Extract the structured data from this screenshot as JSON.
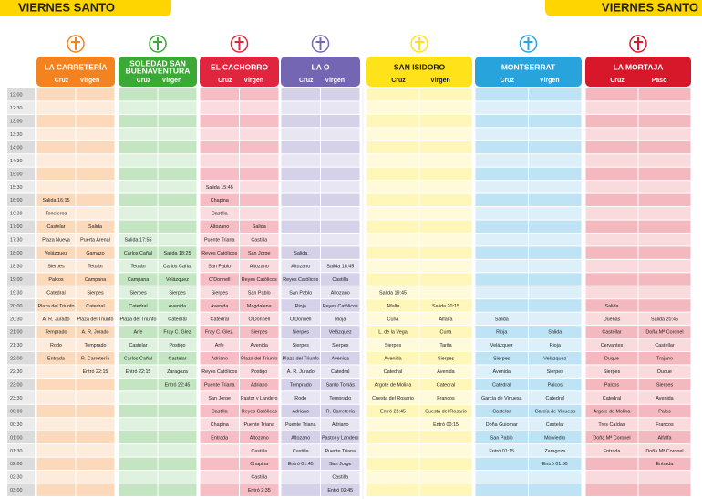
{
  "left_title": "VIERNES SANTO",
  "right_title": "VIERNES SANTO",
  "times": [
    "12:00",
    "12:30",
    "13:00",
    "13:30",
    "14:00",
    "14:30",
    "15:00",
    "15:30",
    "16:00",
    "16:30",
    "17:00",
    "17:30",
    "18:00",
    "18:30",
    "19:00",
    "19:30",
    "20:00",
    "20:30",
    "21:00",
    "21:30",
    "22:00",
    "22:30",
    "23:00",
    "23:30",
    "00:00",
    "00:30",
    "01:00",
    "01:30",
    "02:00",
    "02:30",
    "03:00"
  ],
  "hermandades": [
    {
      "name": [
        "LA CARRETERÍA"
      ],
      "color": "#f4821f",
      "text_color": "#ffffff",
      "columns": [
        {
          "label": "Cruz",
          "stops": [
            null,
            null,
            null,
            null,
            null,
            null,
            null,
            null,
            "Salida 16:15",
            "Toneleros",
            "Castelar",
            "Plaza Nueva",
            "Velázquez",
            "Sierpes",
            "Palcos",
            "Catedral",
            "Plaza del Triunfo",
            "A. R. Jurado",
            "Temprado",
            "Rodo",
            "Entrada",
            null,
            null,
            null,
            null,
            null,
            null,
            null,
            null,
            null,
            null
          ]
        },
        {
          "label": "Virgen",
          "stops": [
            null,
            null,
            null,
            null,
            null,
            null,
            null,
            null,
            null,
            null,
            "Salida",
            "Puerta Arenal",
            "Gamazo",
            "Tetuán",
            "Campana",
            "Sierpes",
            "Catedral",
            "Plaza del Triunfo",
            "A. R. Jurado",
            "Temprado",
            "R. Carretería",
            "Entró 22:15",
            null,
            null,
            null,
            null,
            null,
            null,
            null,
            null,
            null
          ]
        }
      ]
    },
    {
      "name": [
        "SOLEDAD SAN",
        "BUENAVENTURA"
      ],
      "color": "#3aa935",
      "text_color": "#ffffff",
      "columns": [
        {
          "label": "Cruz",
          "stops": [
            null,
            null,
            null,
            null,
            null,
            null,
            null,
            null,
            null,
            null,
            null,
            "Salida 17:55",
            "Carlos Cañal",
            "Tetuán",
            "Campana",
            "Sierpes",
            "Catedral",
            "Plaza del Triunfo",
            "Arfe",
            "Castelar",
            "Carlos Cañal",
            "Entró 22:15",
            null,
            null,
            null,
            null,
            null,
            null,
            null,
            null,
            null
          ]
        },
        {
          "label": "Virgen",
          "stops": [
            null,
            null,
            null,
            null,
            null,
            null,
            null,
            null,
            null,
            null,
            null,
            null,
            "Salida 18:25",
            "Carlos Cañal",
            "Velázquez",
            "Sierpes",
            "Avenida",
            "Catedral",
            "Fray C. Glez",
            "Postigo",
            "Castelar",
            "Zaragoza",
            "Entró 22:45",
            null,
            null,
            null,
            null,
            null,
            null,
            null,
            null
          ]
        }
      ]
    },
    {
      "name": [
        "EL CACHORRO"
      ],
      "color": "#e0263e",
      "text_color": "#ffffff",
      "columns": [
        {
          "label": "Cruz",
          "stops": [
            null,
            null,
            null,
            null,
            null,
            null,
            null,
            "Salida 15:45",
            "Chapina",
            "Castilla",
            "Altozano",
            "Puente Triana",
            "Reyes Católicos",
            "San Pablo",
            "O'Donnell",
            "Sierpes",
            "Avenida",
            "Catedral",
            "Fray C. Glez.",
            "Arfe",
            "Adriano",
            "Reyes Católicos",
            "Puente Triana",
            "San Jorge",
            "Castilla",
            "Chapina",
            "Entrada",
            null,
            null,
            null,
            null
          ]
        },
        {
          "label": "Virgen",
          "stops": [
            null,
            null,
            null,
            null,
            null,
            null,
            null,
            null,
            null,
            null,
            "Salida",
            "Castilla",
            "San Jorge",
            "Altozano",
            "Reyes Católicos",
            "San Pablo",
            "Magdalena",
            "O'Donnell",
            "Sierpes",
            "Avenida",
            "Plaza del Triunfo",
            "Postigo",
            "Adriano",
            "Pastor y Landero",
            "Reyes Católicos",
            "Puente Triana",
            "Altozano",
            "Castilla",
            "Chapina",
            "Castilla",
            "Entró 2:35"
          ]
        }
      ]
    },
    {
      "name": [
        "LA O"
      ],
      "color": "#7566b3",
      "text_color": "#ffffff",
      "columns": [
        {
          "label": "Cruz",
          "stops": [
            null,
            null,
            null,
            null,
            null,
            null,
            null,
            null,
            null,
            null,
            null,
            null,
            "Salida",
            "Altozano",
            "Reyes Católicos",
            "San Pablo",
            "Rioja",
            "O'Donnell",
            "Sierpes",
            "Sierpes",
            "Plaza del Triunfo",
            "A. R. Jurado",
            "Temprado",
            "Rodo",
            "Adriano",
            "Puente Triana",
            "Altozano",
            "Castilla",
            "Entró 01:45",
            null,
            null
          ]
        },
        {
          "label": "Virgen",
          "stops": [
            null,
            null,
            null,
            null,
            null,
            null,
            null,
            null,
            null,
            null,
            null,
            null,
            null,
            "Salida 18:45",
            "Castilla",
            "Altozano",
            "Reyes Católicos",
            "Rioja",
            "Velázquez",
            "Sierpes",
            "Avenida",
            "Catedral",
            "Santo Tomás",
            "Temprado",
            "R. Carretería",
            "Adriano",
            "Pastor y Landero",
            "Puente Triana",
            "San Jorge",
            "Castilla",
            "Entró 02:45"
          ]
        }
      ]
    },
    {
      "name": [
        "SAN ISIDORO"
      ],
      "color": "#ffe21a",
      "text_color": "#1a1a1a",
      "columns": [
        {
          "label": "Cruz",
          "stops": [
            null,
            null,
            null,
            null,
            null,
            null,
            null,
            null,
            null,
            null,
            null,
            null,
            null,
            null,
            null,
            "Salida 19:45",
            "Alfalfa",
            "Cuna",
            "L. de la Vega",
            "Sierpes",
            "Avenida",
            "Catedral",
            "Argote de Molina",
            "Cuesta del Rosario",
            "Entró 23:45",
            null,
            null,
            null,
            null,
            null,
            null
          ]
        },
        {
          "label": "Virgen",
          "stops": [
            null,
            null,
            null,
            null,
            null,
            null,
            null,
            null,
            null,
            null,
            null,
            null,
            null,
            null,
            null,
            null,
            "Salida 20:15",
            "Alfalfa",
            "Cuna",
            "Tarifa",
            "Sierpes",
            "Avenida",
            "Catedral",
            "Francos",
            "Cuesta del Rosario",
            "Entró 00:15",
            null,
            null,
            null,
            null,
            null
          ]
        }
      ]
    },
    {
      "name": [
        "MONTSERRAT"
      ],
      "color": "#29a3dc",
      "text_color": "#ffffff",
      "columns": [
        {
          "label": "Cruz",
          "stops": [
            null,
            null,
            null,
            null,
            null,
            null,
            null,
            null,
            null,
            null,
            null,
            null,
            null,
            null,
            null,
            null,
            null,
            "Salida",
            "Rioja",
            "Velázquez",
            "Sierpes",
            "Avenida",
            "Catedral",
            "García de Vinuesa",
            "Castelar",
            "Doña Guiomar",
            "San Pablo",
            "Entró 01:15",
            null,
            null,
            null
          ]
        },
        {
          "label": "Virgen",
          "stops": [
            null,
            null,
            null,
            null,
            null,
            null,
            null,
            null,
            null,
            null,
            null,
            null,
            null,
            null,
            null,
            null,
            null,
            null,
            "Salida",
            "Rioja",
            "Velázquez",
            "Sierpes",
            "Palcos",
            "Catedral",
            "García de Vinuesa",
            "Castelar",
            "Molviedro",
            "Zaragoza",
            "Entró 01:50",
            null,
            null
          ]
        }
      ]
    },
    {
      "name": [
        "LA MORTAJA"
      ],
      "color": "#d7182a",
      "text_color": "#ffffff",
      "columns": [
        {
          "label": "Cruz",
          "stops": [
            null,
            null,
            null,
            null,
            null,
            null,
            null,
            null,
            null,
            null,
            null,
            null,
            null,
            null,
            null,
            null,
            "Salida",
            "Dueñas",
            "Castellar",
            "Cervantes",
            "Duque",
            "Sierpes",
            "Palcos",
            "Catedral",
            "Argote de Molina",
            "Tres Caídas",
            "Doña Mª Coronel",
            "Entrada",
            null,
            null,
            null
          ]
        },
        {
          "label": "Paso",
          "stops": [
            null,
            null,
            null,
            null,
            null,
            null,
            null,
            null,
            null,
            null,
            null,
            null,
            null,
            null,
            null,
            null,
            null,
            "Salida 20:45",
            "Doña Mª Coronel",
            "Castellar",
            "Trajano",
            "Duque",
            "Sierpes",
            "Avenida",
            "Palos",
            "Francos",
            "Alfalfa",
            "Doña Mª Coronel",
            "Entrada",
            null,
            null
          ]
        }
      ]
    }
  ]
}
